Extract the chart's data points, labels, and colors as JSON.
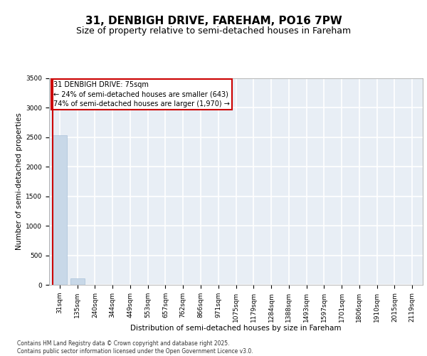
{
  "title_line1": "31, DENBIGH DRIVE, FAREHAM, PO16 7PW",
  "title_line2": "Size of property relative to semi-detached houses in Fareham",
  "xlabel": "Distribution of semi-detached houses by size in Fareham",
  "ylabel": "Number of semi-detached properties",
  "bar_color": "#c8d8e8",
  "bar_edge_color": "#a8c0d8",
  "categories": [
    "31sqm",
    "135sqm",
    "240sqm",
    "344sqm",
    "449sqm",
    "553sqm",
    "657sqm",
    "762sqm",
    "866sqm",
    "971sqm",
    "1075sqm",
    "1179sqm",
    "1284sqm",
    "1388sqm",
    "1493sqm",
    "1597sqm",
    "1701sqm",
    "1806sqm",
    "1910sqm",
    "2015sqm",
    "2119sqm"
  ],
  "values": [
    2530,
    110,
    0,
    0,
    0,
    0,
    0,
    0,
    0,
    0,
    0,
    0,
    0,
    0,
    0,
    0,
    0,
    0,
    0,
    0,
    0
  ],
  "ylim": [
    0,
    3500
  ],
  "yticks": [
    0,
    500,
    1000,
    1500,
    2000,
    2500,
    3000,
    3500
  ],
  "annotation_text": "31 DENBIGH DRIVE: 75sqm\n← 24% of semi-detached houses are smaller (643)\n74% of semi-detached houses are larger (1,970) →",
  "red_line_color": "#cc0000",
  "background_color": "#e8eef5",
  "grid_color": "#ffffff",
  "footer_text": "Contains HM Land Registry data © Crown copyright and database right 2025.\nContains public sector information licensed under the Open Government Licence v3.0.",
  "title_fontsize": 11,
  "subtitle_fontsize": 9,
  "axis_label_fontsize": 7.5,
  "tick_fontsize": 6.5,
  "annotation_fontsize": 7,
  "footer_fontsize": 5.5
}
